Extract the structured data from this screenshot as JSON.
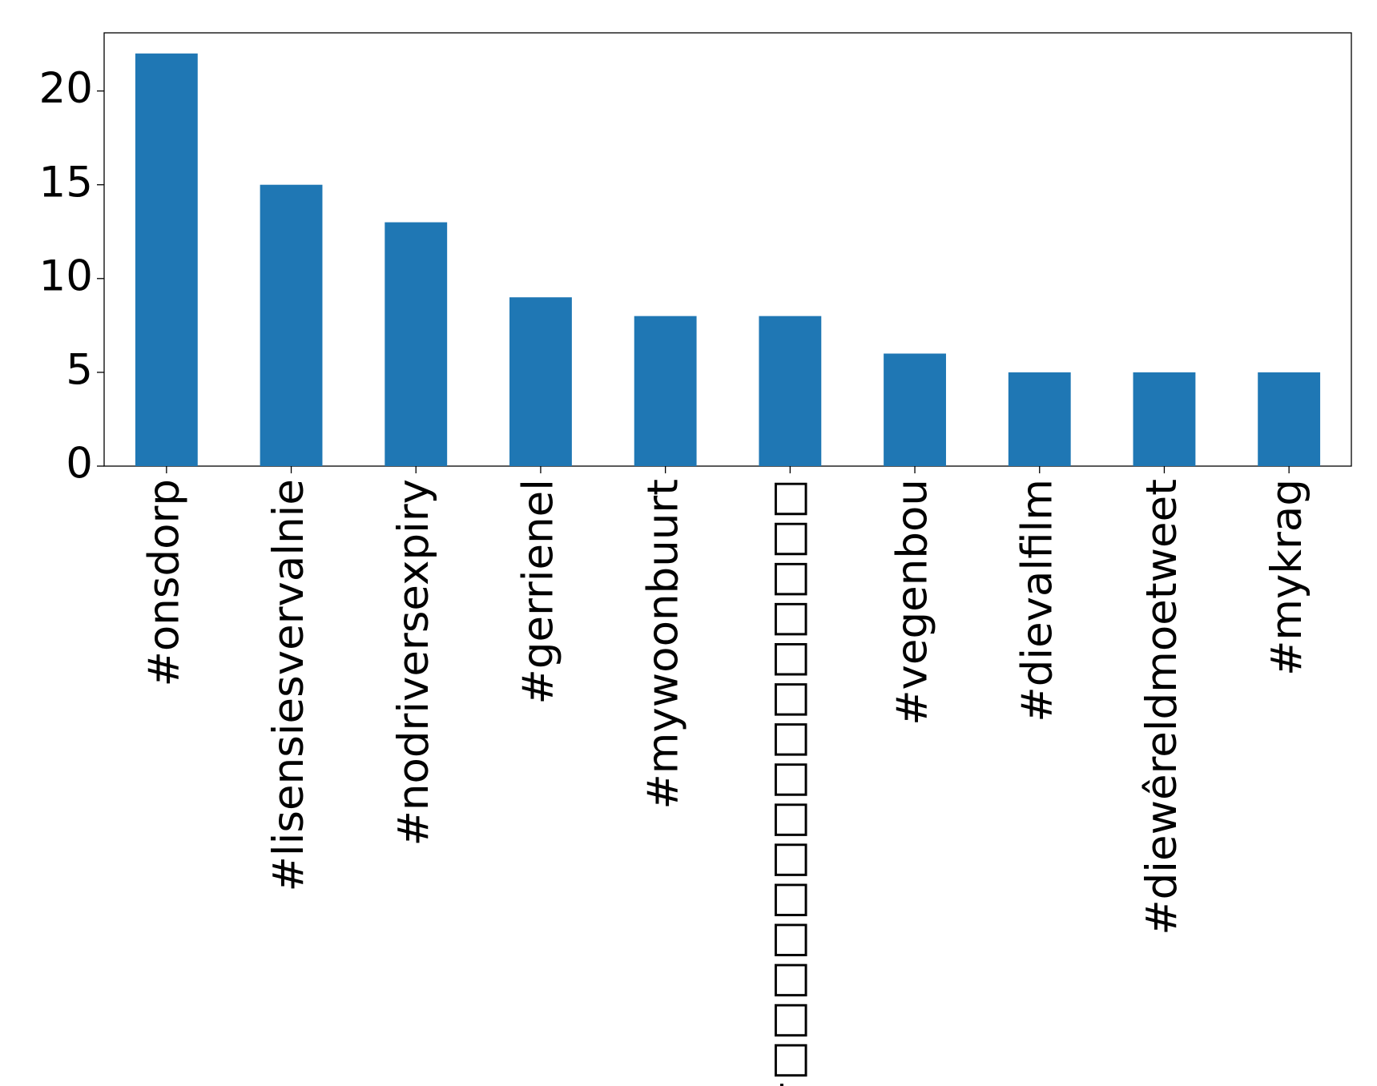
{
  "chart_data": {
    "type": "bar",
    "categories": [
      "#onsdorp",
      "#lisensiesvervalnie",
      "#nodriversexpiry",
      "#gerrienel",
      "#mywoonbuurt",
      "#□□□□□□□□□□□□□□□",
      "#vegenbou",
      "#dievalfilm",
      "#diewêreldmoetweet",
      "#mykrag"
    ],
    "values": [
      22,
      15,
      13,
      9,
      8,
      8,
      6,
      5,
      5,
      5
    ],
    "color": "#1f77b4",
    "ylim": [
      0,
      23.1
    ],
    "yticks": [
      0,
      5,
      10,
      15,
      20
    ],
    "grid": false
  }
}
